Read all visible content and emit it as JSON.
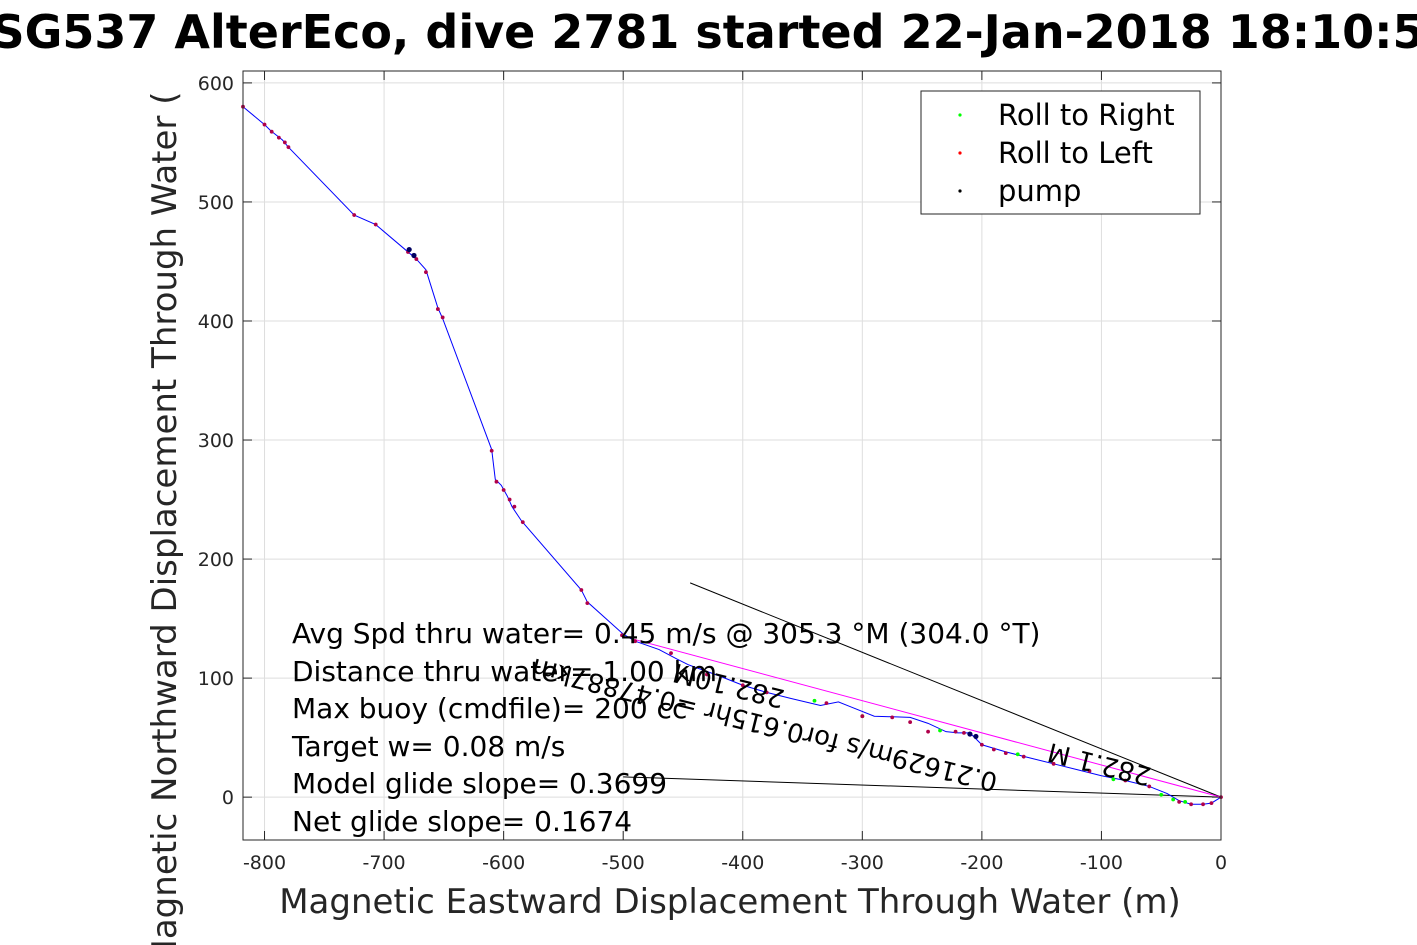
{
  "chart_data": {
    "type": "scatter",
    "title": "SG537 AlterEco, dive 2781 started 22-Jan-2018 18:10:5",
    "xlabel": "Magnetic Eastward Displacement Through Water (m)",
    "ylabel": "Magnetic Northward Displacement Through Water (",
    "xlim": [
      -818,
      0
    ],
    "ylim": [
      -36,
      610
    ],
    "xticks": [
      -800,
      -700,
      -600,
      -500,
      -400,
      -300,
      -200,
      -100,
      0
    ],
    "yticks": [
      0,
      100,
      200,
      300,
      400,
      500,
      600
    ],
    "grid": true,
    "legend_position": "top-right",
    "colors": {
      "track": "#0000ff",
      "roll_right": "#00ff00",
      "roll_left": "#ff0000",
      "pump": "#000000",
      "diagonal": "#ff00ff",
      "reference_lines": "#000000"
    },
    "track": {
      "name": "track",
      "x": [
        -818,
        -800,
        -795,
        -790,
        -785,
        -780,
        -725,
        -707,
        -680,
        -673,
        -665,
        -655,
        -651,
        -610,
        -607,
        -602,
        -597,
        -593,
        -585,
        -535,
        -530,
        -500,
        -490,
        -470,
        -455,
        -445,
        -420,
        -400,
        -380,
        -360,
        -335,
        -320,
        -310,
        -290,
        -260,
        -245,
        -230,
        -220,
        -210,
        -200,
        -180,
        -160,
        -140,
        -120,
        -100,
        -80,
        -60,
        -45,
        -35,
        -25,
        -15,
        -8,
        0
      ],
      "y": [
        580,
        565,
        560,
        556,
        552,
        546,
        489,
        481,
        458,
        452,
        443,
        411,
        402,
        292,
        267,
        262,
        253,
        244,
        232,
        174,
        164,
        137,
        131,
        124,
        116,
        111,
        102,
        94,
        88,
        83,
        77,
        80,
        76,
        68,
        67,
        62,
        55,
        54,
        54,
        44,
        38,
        33,
        28,
        23,
        18,
        14,
        9,
        3,
        -3,
        -6,
        -6,
        -5,
        0
      ]
    },
    "series": [
      {
        "name": "Roll to Right",
        "x": [
          -340,
          -300,
          -235,
          -170,
          -90,
          -50,
          -40,
          -30
        ],
        "y": [
          81,
          68,
          56,
          36,
          15,
          2,
          -2,
          -4
        ]
      },
      {
        "name": "Roll to Left",
        "x": [
          -818,
          -800,
          -794,
          -788,
          -783,
          -780,
          -725,
          -707,
          -680,
          -673,
          -665,
          -655,
          -651,
          -610,
          -606,
          -600,
          -595,
          -591,
          -584,
          -535,
          -530,
          -501,
          -490,
          -460,
          -430,
          -400,
          -380,
          -330,
          -300,
          -275,
          -260,
          -245,
          -222,
          -215,
          -200,
          -190,
          -180,
          -165,
          -140,
          -110,
          -80,
          -60,
          -35,
          -25,
          -15,
          -8,
          0
        ],
        "y": [
          580,
          565,
          559,
          554,
          550,
          546,
          489,
          481,
          458,
          452,
          441,
          410,
          403,
          291,
          265,
          258,
          250,
          244,
          231,
          174,
          163,
          136,
          131,
          121,
          103,
          94,
          88,
          79,
          68,
          67,
          63,
          55,
          55,
          54,
          44,
          40,
          37,
          34,
          28,
          22,
          14,
          9,
          -4,
          -6,
          -6,
          -5,
          0
        ]
      },
      {
        "name": "pump",
        "x": [
          -679,
          -675,
          -210,
          -205
        ],
        "y": [
          460,
          455,
          53,
          51
        ],
        "render_style": "navy markers"
      }
    ],
    "reference_lines": [
      {
        "x": [
          -444,
          0
        ],
        "y": [
          180,
          0
        ]
      },
      {
        "x": [
          -500,
          0
        ],
        "y": [
          17,
          0
        ]
      },
      {
        "x": [
          -500,
          0
        ],
        "y": [
          135,
          0
        ],
        "color": "#ff00ff"
      }
    ],
    "rotated_annotations": [
      {
        "text": "282.1 M",
        "x": -100,
        "y": 35
      },
      {
        "text": "0.21629m/s for0.615hr =0.47887km",
        "x": -380,
        "y": 68
      },
      {
        "text": "282.10M",
        "x": -410,
        "y": 101
      }
    ],
    "annotations": [
      "Avg Spd thru water=  0.45 m/s @ 305.3 °M (304.0 °T)",
      "Distance thru water= 1.00 km",
      "Max buoy (cmdfile)= 200 cc",
      "Target w= 0.08 m/s",
      "Model glide slope= 0.3699",
      "Net glide slope= 0.1674"
    ]
  }
}
